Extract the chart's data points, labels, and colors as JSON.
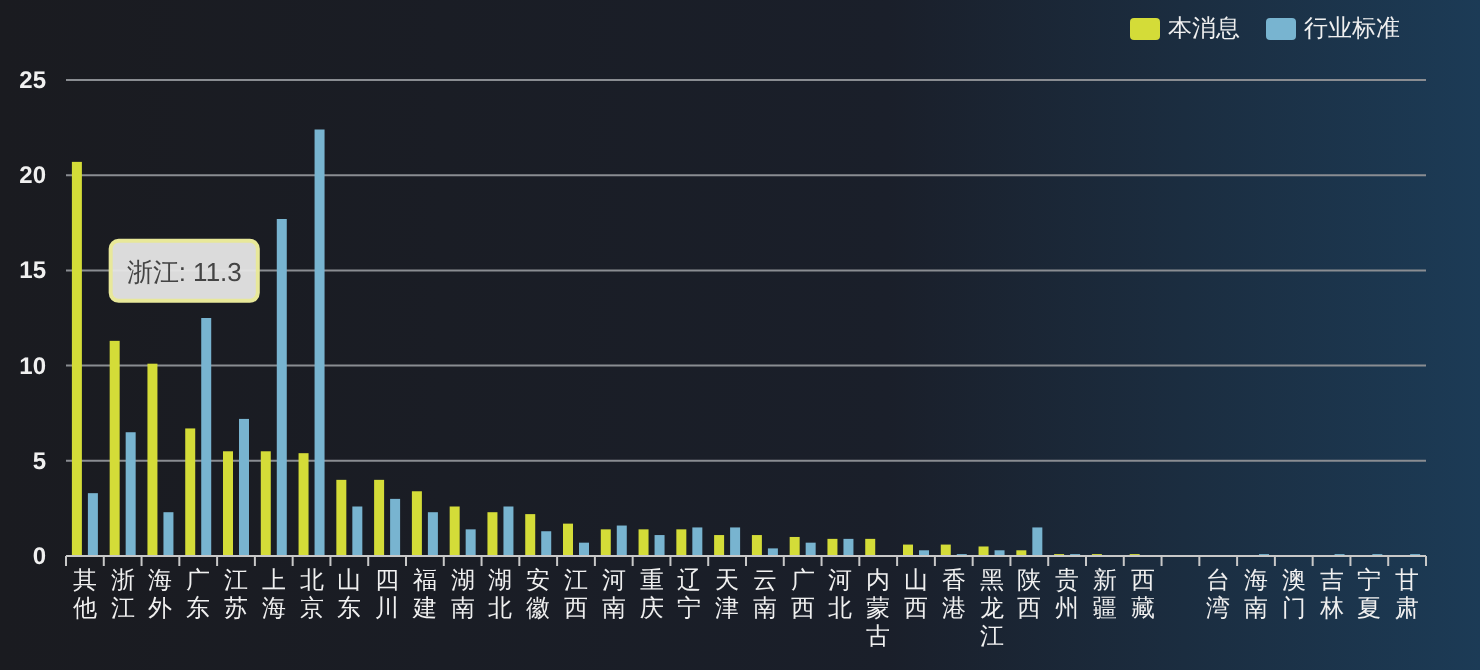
{
  "chart_data": {
    "type": "bar",
    "categories": [
      "其他",
      "浙江",
      "海外",
      "广东",
      "江苏",
      "上海",
      "北京",
      "山东",
      "四川",
      "福建",
      "湖南",
      "湖北",
      "安徽",
      "江西",
      "河南",
      "重庆",
      "辽宁",
      "天津",
      "云南",
      "广西",
      "河北",
      "内蒙古",
      "山西",
      "香港",
      "黑龙江",
      "陕西",
      "贵州",
      "新疆",
      "西藏",
      null,
      "台湾",
      "海南",
      "澳门",
      "吉林",
      "宁夏",
      "甘肃"
    ],
    "series": [
      {
        "name": "本消息",
        "color": "#d4dc38",
        "values": [
          20.7,
          11.3,
          10.1,
          6.7,
          5.5,
          5.5,
          5.4,
          4.0,
          4.0,
          3.4,
          2.6,
          2.3,
          2.2,
          1.7,
          1.4,
          1.4,
          1.4,
          1.1,
          1.1,
          1.0,
          0.9,
          0.9,
          0.6,
          0.6,
          0.5,
          0.3,
          0.1,
          0.1,
          0.1,
          0,
          0,
          0,
          0,
          0,
          0,
          0
        ]
      },
      {
        "name": "行业标准",
        "color": "#78b4d0",
        "values": [
          3.3,
          6.5,
          2.3,
          12.5,
          7.2,
          17.7,
          22.4,
          2.6,
          3.0,
          2.3,
          1.4,
          2.6,
          1.3,
          0.7,
          1.6,
          1.1,
          1.5,
          1.5,
          0.4,
          0.7,
          0.9,
          0,
          0.3,
          0.1,
          0.3,
          1.5,
          0.1,
          0,
          0,
          0,
          0,
          0.1,
          0,
          0.1,
          0.1,
          0.1
        ]
      }
    ],
    "ylim": [
      0,
      25
    ],
    "yticks": [
      0,
      5,
      10,
      15,
      20,
      25
    ],
    "grid": "y",
    "legend": "top right",
    "annotations": [
      {
        "text": "浙江: 11.3",
        "x": "浙江",
        "y": 11.3
      }
    ]
  }
}
